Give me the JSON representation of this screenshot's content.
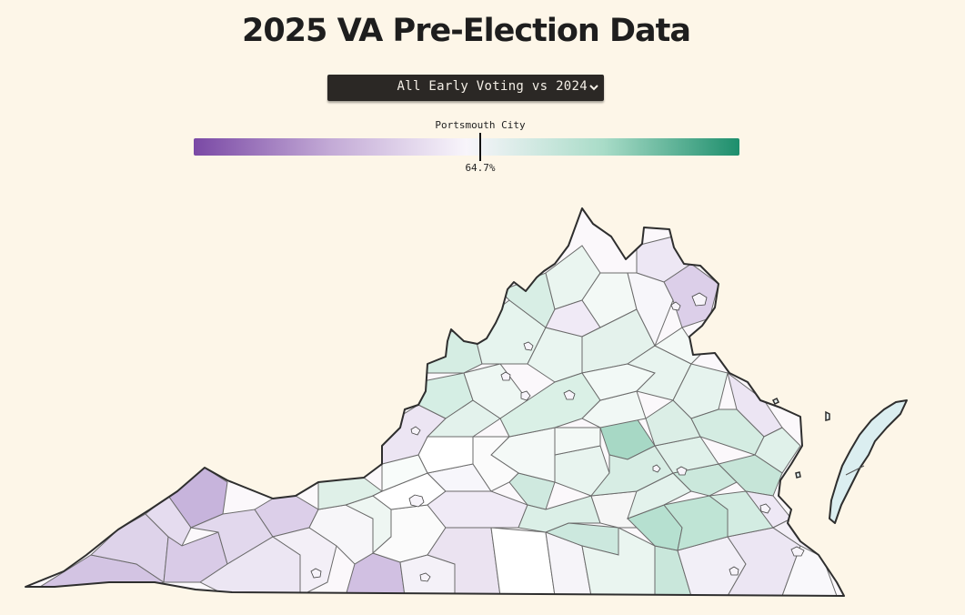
{
  "header": {
    "title": "2025 VA Pre-Election Data"
  },
  "metric_select": {
    "selected": "All Early Voting vs 2024"
  },
  "legend": {
    "hover_region": "Portsmouth City",
    "hover_value": "64.7%",
    "color_low": "#7a49a5",
    "color_mid": "#f8f5fb",
    "color_high": "#1d8e6c"
  },
  "colors": {
    "background": "#fdf6e8",
    "border": "#2e2e2e",
    "county_border": "#6b6b6b"
  },
  "icons": {
    "dropdown": "chevron-down-icon"
  }
}
